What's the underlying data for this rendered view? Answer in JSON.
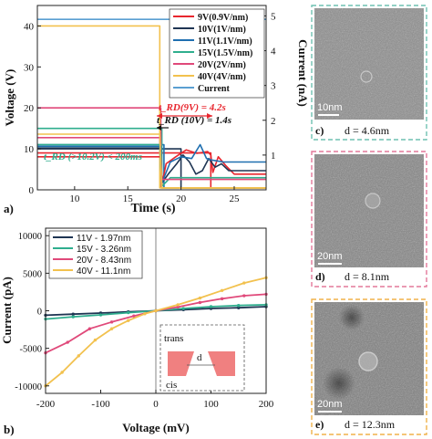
{
  "colors": {
    "red": "#e8262e",
    "navy": "#1f3553",
    "blue": "#1f6fb0",
    "green": "#2fae8e",
    "pink": "#e0497a",
    "yellow": "#f2c14e",
    "teal": "#5a9fd2",
    "frame_c": "#6fc1b2",
    "frame_d": "#e3789a",
    "frame_e": "#f0b24a"
  },
  "panel_a": {
    "label": "a)",
    "annotation_rd9": "t_RD(9V) = 4.2s",
    "annotation_rd10": "t_RD (10V) = 1.4s",
    "annotation_rd_high": "t_RD (>10.2V) < 200ms"
  },
  "panel_b": {
    "label": "b)"
  },
  "inset_b": {
    "trans": "trans",
    "cis": "cis",
    "d": "d"
  },
  "images": [
    {
      "label": "c)",
      "value": "d = 4.6nm",
      "scalebar": "10nm"
    },
    {
      "label": "d)",
      "value": "d = 8.1nm",
      "scalebar": "20nm"
    },
    {
      "label": "e)",
      "value": "d = 12.3nm",
      "scalebar": "20nm"
    }
  ],
  "chart_data": [
    {
      "type": "line",
      "xlabel": "Time  (s)",
      "ylabel": "Voltage (V)",
      "y2label": "Current (nA)",
      "xlim": [
        6.5,
        28
      ],
      "ylim": [
        0,
        45
      ],
      "y2lim": [
        0,
        5.3
      ],
      "xticks": [
        10,
        15,
        20,
        25
      ],
      "yticks": [
        0,
        10,
        20,
        30,
        40
      ],
      "y2ticks": [
        1,
        2,
        3,
        4,
        5
      ],
      "legend_position": "top-right",
      "legend": [
        "9V(0.9V/nm)",
        "10V(1V/nm)",
        "11V(1.1V/nm)",
        "15V(1.5V/nm)",
        "20V(2V/nm)",
        "40V(4V/nm)",
        "Current"
      ],
      "series": [
        {
          "name": "9V(0.9V/nm)",
          "color": "red",
          "axis": "voltage",
          "x": [
            6.5,
            22.8,
            22.8,
            28
          ],
          "y": [
            9,
            9,
            0.5,
            0.5
          ]
        },
        {
          "name": "10V(1V/nm)",
          "color": "navy",
          "axis": "voltage",
          "x": [
            6.5,
            20.0,
            20.0,
            28
          ],
          "y": [
            10,
            10,
            0.5,
            0.5
          ]
        },
        {
          "name": "11V(1.1V/nm)",
          "color": "blue",
          "axis": "voltage",
          "x": [
            6.5,
            18.4,
            18.4,
            28
          ],
          "y": [
            11,
            11,
            0.5,
            0.5
          ]
        },
        {
          "name": "15V(1.5V/nm)",
          "color": "green",
          "axis": "voltage",
          "x": [
            6.5,
            18.2,
            18.2,
            28
          ],
          "y": [
            15,
            15,
            0.5,
            0.5
          ]
        },
        {
          "name": "20V(2V/nm)",
          "color": "pink",
          "axis": "voltage",
          "x": [
            6.5,
            18.1,
            18.1,
            28
          ],
          "y": [
            20,
            20,
            0.5,
            0.5
          ]
        },
        {
          "name": "40V(4V/nm)",
          "color": "yellow",
          "axis": "voltage",
          "x": [
            6.5,
            18.0,
            18.0,
            28
          ],
          "y": [
            40,
            40,
            0.5,
            0.5
          ]
        },
        {
          "name": "Current",
          "color": "teal",
          "axis": "current",
          "x": [
            6.5,
            28
          ],
          "y": [
            4.9,
            4.9
          ]
        },
        {
          "name": "current 9V",
          "color": "red",
          "axis": "current",
          "x": [
            6.5,
            18.1,
            18.2,
            18.6,
            19.5,
            20.5,
            21.5,
            22.5,
            22.8,
            23.0,
            23.5,
            24.2,
            25,
            26,
            28
          ],
          "y": [
            0.95,
            0.95,
            0.15,
            0.75,
            0.95,
            1.15,
            1.05,
            1.1,
            1.0,
            0.5,
            0.95,
            0.7,
            0.45,
            0.45,
            0.45
          ]
        },
        {
          "name": "current 10V",
          "color": "navy",
          "axis": "current",
          "x": [
            6.5,
            18.1,
            18.2,
            18.8,
            19.6,
            20.2,
            20.8,
            21.4,
            22.0,
            22.6,
            23.2,
            23.8,
            24.5,
            25.5,
            28
          ],
          "y": [
            1.2,
            1.2,
            0.2,
            0.45,
            0.75,
            1.0,
            0.8,
            0.45,
            0.55,
            0.9,
            0.65,
            0.75,
            0.55,
            0.55,
            0.55
          ]
        },
        {
          "name": "current 11V",
          "color": "blue",
          "axis": "current",
          "x": [
            6.5,
            18.1,
            18.2,
            19.0,
            20.0,
            21.0,
            21.8,
            22.4,
            23.0,
            24.0,
            25,
            28
          ],
          "y": [
            1.25,
            1.25,
            0.2,
            0.8,
            0.95,
            0.9,
            1.3,
            0.9,
            0.85,
            0.8,
            0.8,
            0.8
          ]
        },
        {
          "name": "current 15V",
          "color": "green",
          "axis": "current",
          "x": [
            6.5,
            18.0,
            18.2,
            19.0,
            20,
            28
          ],
          "y": [
            1.3,
            1.3,
            0.1,
            0.35,
            0.35,
            0.35
          ]
        },
        {
          "name": "current 20V",
          "color": "pink",
          "axis": "current",
          "x": [
            6.5,
            18.0,
            18.2,
            20,
            28
          ],
          "y": [
            1.5,
            1.5,
            0.3,
            0.3,
            0.3
          ]
        },
        {
          "name": "current 40V",
          "color": "yellow",
          "axis": "current",
          "x": [
            6.5,
            18.0,
            18.2,
            20,
            28
          ],
          "y": [
            1.6,
            1.6,
            0.05,
            0.05,
            0.05
          ]
        }
      ]
    },
    {
      "type": "line",
      "xlabel": "Voltage (mV)",
      "ylabel": "Current (pA)",
      "xlim": [
        -200,
        200
      ],
      "ylim": [
        -11000,
        11000
      ],
      "xticks": [
        -200,
        -100,
        0,
        100,
        200
      ],
      "yticks": [
        -10000,
        -5000,
        0,
        5000,
        10000
      ],
      "legend_position": "top-left",
      "legend": [
        "11V - 1.97nm",
        "15V - 3.26nm",
        "20V - 8.43nm",
        "40V - 11.1nm"
      ],
      "series": [
        {
          "name": "11V - 1.97nm",
          "color": "navy",
          "x": [
            -200,
            -150,
            -100,
            -50,
            0,
            50,
            100,
            150,
            200
          ],
          "y": [
            -600,
            -450,
            -300,
            -150,
            0,
            150,
            300,
            400,
            550
          ]
        },
        {
          "name": "15V - 3.26nm",
          "color": "green",
          "x": [
            -200,
            -150,
            -100,
            -50,
            0,
            50,
            100,
            150,
            200
          ],
          "y": [
            -1100,
            -800,
            -550,
            -250,
            0,
            300,
            550,
            700,
            800
          ]
        },
        {
          "name": "20V - 8.43nm",
          "color": "pink",
          "x": [
            -200,
            -160,
            -120,
            -80,
            -40,
            0,
            40,
            80,
            120,
            160,
            200
          ],
          "y": [
            -5600,
            -4200,
            -2400,
            -1500,
            -700,
            0,
            500,
            1100,
            1600,
            2000,
            2200
          ]
        },
        {
          "name": "40V - 11.1nm",
          "color": "yellow",
          "x": [
            -200,
            -170,
            -140,
            -110,
            -80,
            -50,
            -20,
            0,
            40,
            80,
            120,
            160,
            200
          ],
          "y": [
            -10000,
            -8200,
            -6000,
            -3900,
            -2400,
            -1300,
            -400,
            0,
            800,
            1700,
            2700,
            3700,
            4400
          ]
        }
      ]
    }
  ]
}
